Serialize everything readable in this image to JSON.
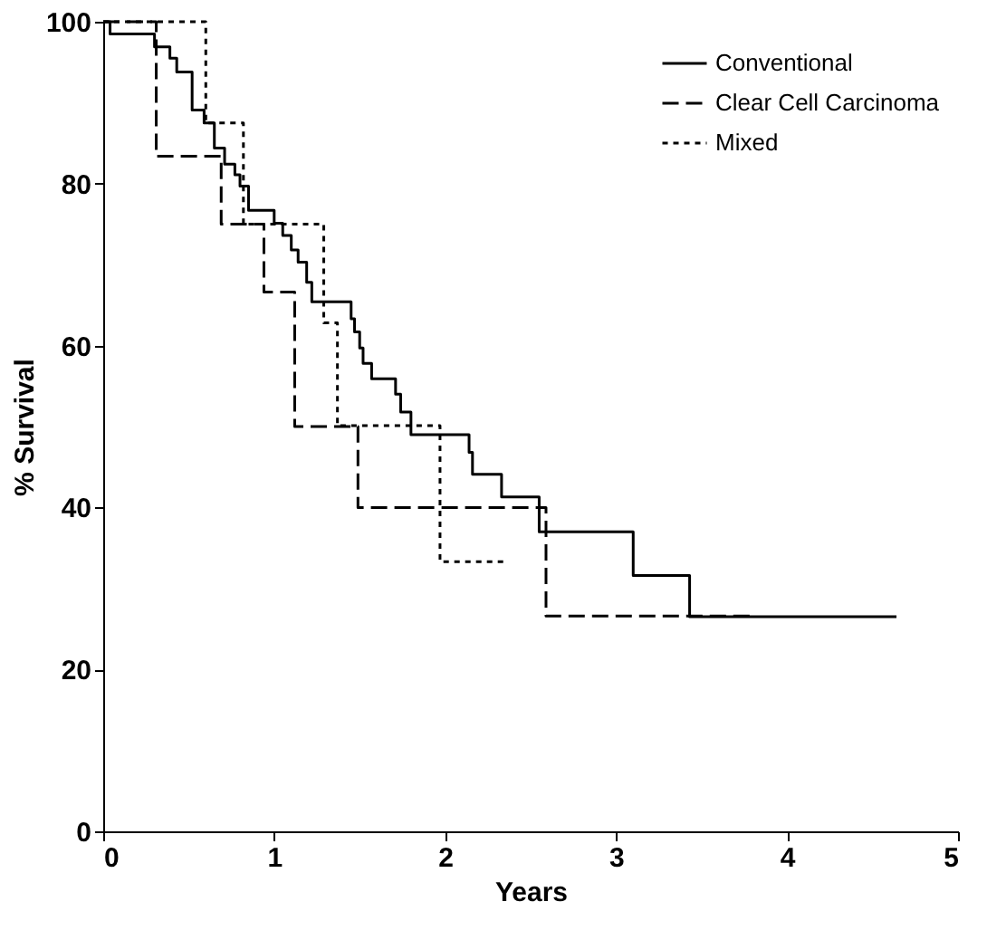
{
  "chart_data": {
    "type": "step",
    "xlabel": "Years",
    "ylabel": "% Survival",
    "xlim": [
      0,
      5
    ],
    "xticks": [
      0,
      1,
      2,
      3,
      4,
      5
    ],
    "ylim": [
      0,
      100
    ],
    "yticks": [
      0,
      20,
      40,
      60,
      80,
      100
    ],
    "grid": false,
    "legend": "top right",
    "marker": "none",
    "series": [
      {
        "name": "Conventional",
        "color": "#000000",
        "line_style": "solid",
        "x": [
          0,
          0.04,
          0.3,
          0.39,
          0.43,
          0.52,
          0.59,
          0.65,
          0.71,
          0.77,
          0.8,
          0.85,
          1.0,
          1.05,
          1.1,
          1.14,
          1.19,
          1.22,
          1.45,
          1.47,
          1.5,
          1.52,
          1.57,
          1.71,
          1.74,
          1.8,
          2.14,
          2.16,
          2.33,
          2.55,
          3.1,
          3.43,
          3.51,
          4.64
        ],
        "values": [
          100,
          98.5,
          96.9,
          95.5,
          93.8,
          89.1,
          87.5,
          84.4,
          82.4,
          81.1,
          79.7,
          76.7,
          75.1,
          73.6,
          71.8,
          70.3,
          67.8,
          65.4,
          63.3,
          61.7,
          59.7,
          57.8,
          55.9,
          54.0,
          51.8,
          49.0,
          46.8,
          44.1,
          41.3,
          37.0,
          31.6,
          26.5,
          26.5,
          26.5
        ]
      },
      {
        "name": "Clear Cell Carcinoma",
        "color": "#000000",
        "line_style": "dashed",
        "x": [
          0,
          0.31,
          0.69,
          0.94,
          1.12,
          1.49,
          2.59,
          3.8
        ],
        "values": [
          100,
          83.4,
          75.0,
          66.6,
          50.0,
          40.0,
          26.6,
          26.6
        ]
      },
      {
        "name": "Mixed",
        "color": "#000000",
        "line_style": "dotted",
        "x": [
          0,
          0.6,
          0.82,
          1.29,
          1.37,
          1.97,
          2.36
        ],
        "values": [
          100,
          87.5,
          75.0,
          62.8,
          50.1,
          33.3,
          33.3
        ]
      }
    ]
  }
}
